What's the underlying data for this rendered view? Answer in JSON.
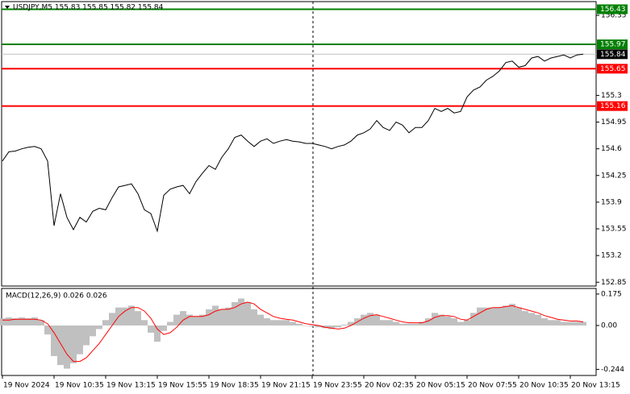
{
  "chart_data": [
    {
      "type": "line",
      "title": "USDJPY,M5  155.83 155.85 155.82 155.84",
      "color": "#000000",
      "xlim": [
        0,
        92
      ],
      "ylim": [
        152.8,
        156.53
      ],
      "yticks": [
        156.35,
        155.3,
        154.95,
        154.6,
        154.25,
        153.9,
        153.55,
        153.2,
        152.85
      ],
      "values": [
        154.44,
        154.56,
        154.57,
        154.6,
        154.62,
        154.63,
        154.6,
        154.44,
        153.59,
        154.01,
        153.7,
        153.54,
        153.7,
        153.64,
        153.78,
        153.82,
        153.8,
        153.96,
        154.1,
        154.12,
        154.14,
        154.01,
        153.8,
        153.75,
        153.52,
        153.99,
        154.07,
        154.1,
        154.12,
        154.01,
        154.17,
        154.28,
        154.38,
        154.33,
        154.49,
        154.6,
        154.75,
        154.78,
        154.7,
        154.63,
        154.7,
        154.73,
        154.67,
        154.7,
        154.72,
        154.7,
        154.69,
        154.67,
        154.67,
        154.65,
        154.63,
        154.6,
        154.63,
        154.65,
        154.7,
        154.78,
        154.81,
        154.86,
        154.97,
        154.88,
        154.84,
        154.95,
        154.91,
        154.81,
        154.88,
        154.88,
        154.97,
        155.13,
        155.09,
        155.13,
        155.07,
        155.09,
        155.28,
        155.37,
        155.41,
        155.5,
        155.55,
        155.62,
        155.73,
        155.75,
        155.67,
        155.69,
        155.79,
        155.81,
        155.75,
        155.79,
        155.81,
        155.83,
        155.79,
        155.83,
        155.84
      ],
      "hlines": [
        {
          "value": 156.43,
          "color": "#008000",
          "label_color": "#008000"
        },
        {
          "value": 155.97,
          "color": "#008000",
          "label_color": "#008000"
        },
        {
          "value": 155.84,
          "color": "#c0c0c0",
          "label_color": "#000000"
        },
        {
          "value": 155.65,
          "color": "#ff0000",
          "label_color": "#ff0000"
        },
        {
          "value": 155.16,
          "color": "#ff0000",
          "label_color": "#ff0000"
        }
      ]
    },
    {
      "type": "bar",
      "title": "MACD(12,26,9) 0.026 0.026",
      "xlim": [
        0,
        92
      ],
      "xticks": [
        {
          "value": 0,
          "label": "19 Nov 2024"
        },
        {
          "value": 8,
          "label": "19 Nov 10:35"
        },
        {
          "value": 16,
          "label": "19 Nov 13:15"
        },
        {
          "value": 24,
          "label": "19 Nov 15:55"
        },
        {
          "value": 32,
          "label": "19 Nov 18:35"
        },
        {
          "value": 40,
          "label": "19 Nov 21:15"
        },
        {
          "value": 48,
          "label": "19 Nov 23:55"
        },
        {
          "value": 56,
          "label": "20 Nov 02:35"
        },
        {
          "value": 64,
          "label": "20 Nov 05:15"
        },
        {
          "value": 72,
          "label": "20 Nov 07:55"
        },
        {
          "value": 80,
          "label": "20 Nov 10:35"
        },
        {
          "value": 88,
          "label": "20 Nov 13:15"
        }
      ],
      "ylim": [
        -0.278,
        0.206
      ],
      "yticks": [
        0.175,
        {
          "value": 0,
          "label": "0.00"
        },
        -0.244
      ],
      "series": [
        {
          "type": "bar",
          "color": "#c0c0c0",
          "values": [
            0.04,
            0.045,
            0.04,
            0.045,
            0.04,
            0.045,
            0.03,
            -0.05,
            -0.17,
            -0.22,
            -0.24,
            -0.21,
            -0.16,
            -0.11,
            -0.06,
            -0.02,
            0.03,
            0.07,
            0.1,
            0.1,
            0.11,
            0.08,
            0.03,
            -0.04,
            -0.09,
            -0.03,
            0.02,
            0.06,
            0.08,
            0.06,
            0.05,
            0.06,
            0.09,
            0.11,
            0.09,
            0.1,
            0.13,
            0.15,
            0.13,
            0.09,
            0.06,
            0.04,
            0.03,
            0.03,
            0.03,
            0.02,
            0.01,
            0.0,
            -0.005,
            -0.01,
            -0.015,
            -0.02,
            -0.01,
            0.005,
            0.02,
            0.04,
            0.06,
            0.07,
            0.06,
            0.03,
            0.03,
            0.02,
            0.01,
            0.01,
            0.01,
            0.02,
            0.04,
            0.07,
            0.06,
            0.05,
            0.04,
            0.02,
            0.03,
            0.07,
            0.1,
            0.1,
            0.1,
            0.1,
            0.11,
            0.12,
            0.1,
            0.08,
            0.07,
            0.06,
            0.04,
            0.03,
            0.03,
            0.02,
            0.02,
            0.02,
            0.02
          ]
        },
        {
          "type": "line",
          "color": "#ff0000",
          "values": [
            0.03,
            0.03,
            0.035,
            0.035,
            0.035,
            0.035,
            0.03,
            0.01,
            -0.04,
            -0.1,
            -0.16,
            -0.2,
            -0.2,
            -0.18,
            -0.14,
            -0.1,
            -0.05,
            0.0,
            0.05,
            0.08,
            0.1,
            0.1,
            0.08,
            0.04,
            -0.02,
            -0.05,
            -0.04,
            -0.01,
            0.03,
            0.05,
            0.05,
            0.05,
            0.06,
            0.08,
            0.09,
            0.09,
            0.1,
            0.12,
            0.13,
            0.12,
            0.09,
            0.07,
            0.05,
            0.04,
            0.035,
            0.03,
            0.02,
            0.01,
            0.005,
            0.0,
            -0.01,
            -0.015,
            -0.02,
            -0.015,
            0.0,
            0.02,
            0.04,
            0.055,
            0.06,
            0.05,
            0.04,
            0.03,
            0.02,
            0.015,
            0.015,
            0.015,
            0.025,
            0.045,
            0.055,
            0.055,
            0.05,
            0.035,
            0.03,
            0.05,
            0.07,
            0.09,
            0.1,
            0.1,
            0.105,
            0.11,
            0.1,
            0.09,
            0.08,
            0.07,
            0.055,
            0.045,
            0.035,
            0.03,
            0.025,
            0.025,
            0.02
          ]
        }
      ]
    }
  ]
}
